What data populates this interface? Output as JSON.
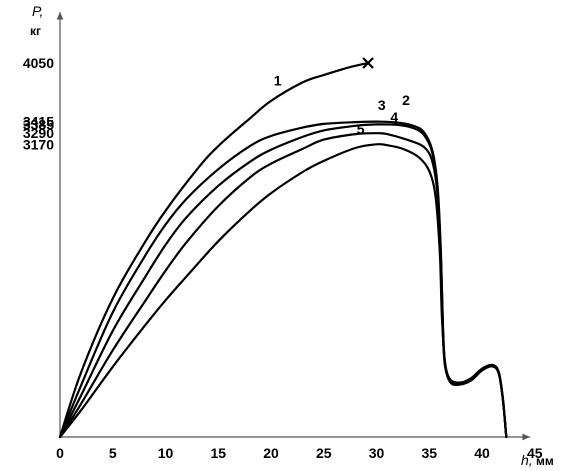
{
  "chart_data": {
    "type": "line",
    "ylabel": "P,",
    "yunit": "кг",
    "xlabel": "h,",
    "xunit": "мм",
    "x_ticks": [
      0,
      5,
      10,
      15,
      20,
      25,
      30,
      35,
      40,
      45
    ],
    "y_ticks": [
      4050,
      3415,
      3385,
      3290,
      3170
    ],
    "series": [
      {
        "name": "1",
        "points": [
          [
            0,
            0
          ],
          [
            2,
            700
          ],
          [
            5,
            1500
          ],
          [
            8,
            2100
          ],
          [
            10,
            2450
          ],
          [
            13,
            2900
          ],
          [
            15,
            3150
          ],
          [
            18,
            3450
          ],
          [
            20,
            3640
          ],
          [
            23,
            3840
          ],
          [
            25,
            3920
          ],
          [
            27,
            3990
          ],
          [
            28,
            4020
          ],
          [
            29.2,
            4050
          ]
        ],
        "end_marker": "x"
      },
      {
        "name": "2",
        "points": [
          [
            0,
            0
          ],
          [
            2,
            560
          ],
          [
            5,
            1350
          ],
          [
            8,
            1950
          ],
          [
            10,
            2300
          ],
          [
            12,
            2580
          ],
          [
            15,
            2900
          ],
          [
            18,
            3150
          ],
          [
            20,
            3260
          ],
          [
            23,
            3350
          ],
          [
            25,
            3390
          ],
          [
            28,
            3410
          ],
          [
            30,
            3415
          ],
          [
            32,
            3405
          ],
          [
            33.5,
            3370
          ],
          [
            34.5,
            3300
          ],
          [
            35.3,
            3100
          ],
          [
            35.8,
            2700
          ],
          [
            36.1,
            2000
          ],
          [
            36.3,
            1200
          ],
          [
            36.5,
            800
          ],
          [
            37,
            620
          ],
          [
            38,
            590
          ],
          [
            39,
            640
          ],
          [
            40,
            740
          ],
          [
            41,
            780
          ],
          [
            41.6,
            700
          ],
          [
            42,
            400
          ],
          [
            42.3,
            0
          ]
        ]
      },
      {
        "name": "3",
        "points": [
          [
            0,
            0
          ],
          [
            2,
            450
          ],
          [
            5,
            1150
          ],
          [
            8,
            1720
          ],
          [
            10,
            2080
          ],
          [
            12,
            2380
          ],
          [
            15,
            2720
          ],
          [
            18,
            2980
          ],
          [
            20,
            3110
          ],
          [
            23,
            3250
          ],
          [
            25,
            3320
          ],
          [
            28,
            3370
          ],
          [
            30,
            3385
          ],
          [
            32,
            3380
          ],
          [
            33.5,
            3345
          ],
          [
            34.5,
            3270
          ],
          [
            35.3,
            3070
          ],
          [
            35.8,
            2650
          ],
          [
            36.1,
            1950
          ],
          [
            36.3,
            1150
          ],
          [
            36.5,
            780
          ],
          [
            37,
            610
          ],
          [
            38,
            585
          ],
          [
            39,
            630
          ],
          [
            40,
            735
          ],
          [
            41,
            775
          ],
          [
            41.6,
            690
          ],
          [
            42,
            390
          ],
          [
            42.3,
            0
          ]
        ]
      },
      {
        "name": "4",
        "points": [
          [
            0,
            0
          ],
          [
            2,
            360
          ],
          [
            5,
            940
          ],
          [
            8,
            1460
          ],
          [
            10,
            1800
          ],
          [
            12,
            2110
          ],
          [
            15,
            2500
          ],
          [
            18,
            2810
          ],
          [
            20,
            2960
          ],
          [
            23,
            3120
          ],
          [
            25,
            3220
          ],
          [
            28,
            3280
          ],
          [
            30,
            3290
          ],
          [
            31,
            3280
          ],
          [
            33,
            3215
          ],
          [
            34.5,
            3140
          ],
          [
            35.3,
            2980
          ],
          [
            35.8,
            2600
          ],
          [
            36.1,
            1900
          ],
          [
            36.3,
            1100
          ],
          [
            36.5,
            760
          ],
          [
            37,
            600
          ],
          [
            38,
            580
          ],
          [
            39,
            625
          ],
          [
            40,
            730
          ],
          [
            41,
            770
          ],
          [
            41.6,
            685
          ],
          [
            42,
            385
          ],
          [
            42.3,
            0
          ]
        ]
      },
      {
        "name": "5",
        "points": [
          [
            0,
            0
          ],
          [
            2,
            290
          ],
          [
            5,
            760
          ],
          [
            8,
            1200
          ],
          [
            10,
            1480
          ],
          [
            12,
            1740
          ],
          [
            15,
            2120
          ],
          [
            18,
            2450
          ],
          [
            20,
            2640
          ],
          [
            23,
            2870
          ],
          [
            25,
            2990
          ],
          [
            28,
            3130
          ],
          [
            30,
            3170
          ],
          [
            31,
            3160
          ],
          [
            32.5,
            3120
          ],
          [
            34,
            3030
          ],
          [
            35,
            2880
          ],
          [
            35.6,
            2600
          ],
          [
            36,
            2000
          ],
          [
            36.2,
            1300
          ],
          [
            36.5,
            800
          ],
          [
            37,
            590
          ],
          [
            38,
            570
          ],
          [
            39,
            615
          ],
          [
            40,
            720
          ],
          [
            41,
            765
          ],
          [
            41.6,
            680
          ],
          [
            42,
            380
          ],
          [
            42.3,
            0
          ]
        ]
      }
    ]
  }
}
